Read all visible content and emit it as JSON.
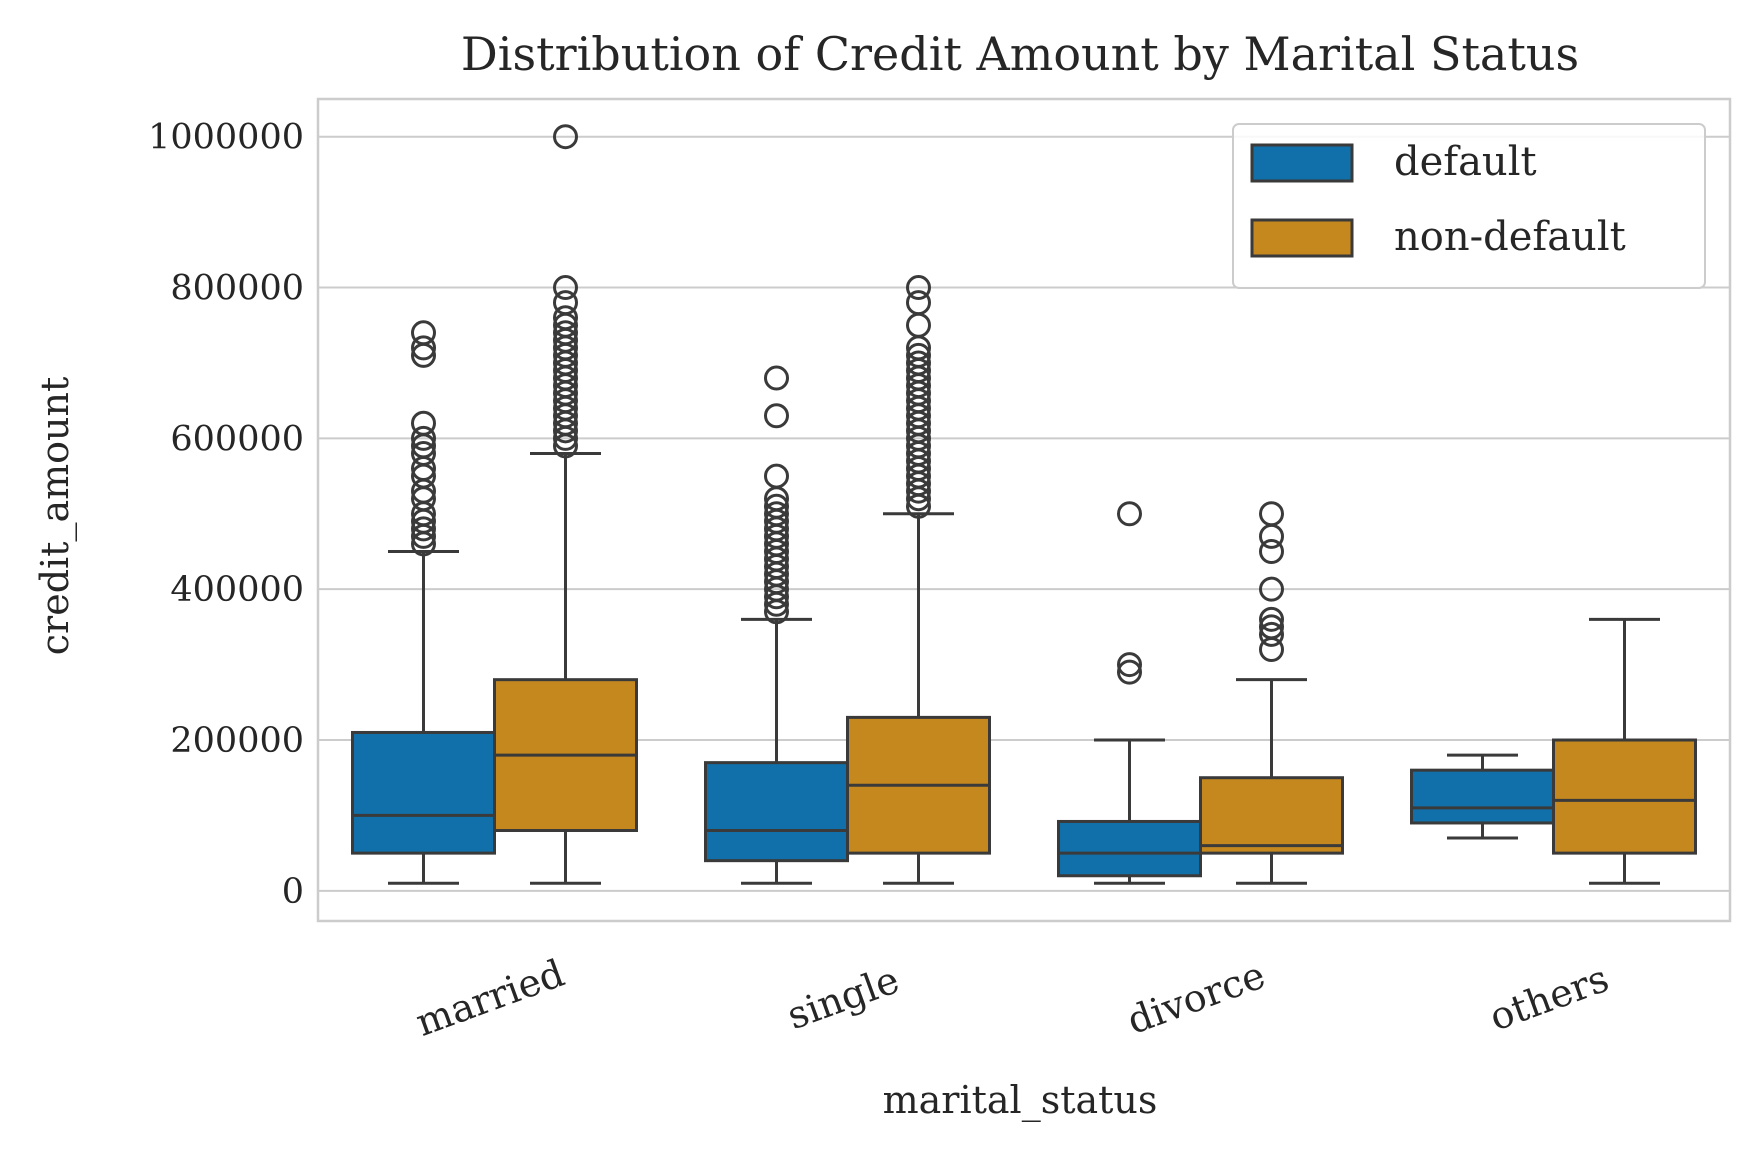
{
  "chart_data": {
    "type": "box",
    "title": "Distribution of Credit Amount by Marital Status",
    "xlabel": "marital_status",
    "ylabel": "credit_amount",
    "categories": [
      "married",
      "single",
      "divorce",
      "others"
    ],
    "ylim": [
      -40000,
      1050000
    ],
    "yticks": [
      0,
      200000,
      400000,
      600000,
      800000,
      1000000
    ],
    "ytick_labels": [
      "0",
      "200000",
      "400000",
      "600000",
      "800000",
      "1000000"
    ],
    "grid": true,
    "legend_position": "top-right",
    "series": [
      {
        "name": "default",
        "color": "#1170aa",
        "boxes": [
          {
            "whisker_low": 10000,
            "q1": 50000,
            "median": 100000,
            "q3": 210000,
            "whisker_high": 450000,
            "outliers": [
              460000,
              470000,
              480000,
              490000,
              500000,
              520000,
              530000,
              550000,
              560000,
              580000,
              590000,
              600000,
              620000,
              710000,
              720000,
              740000
            ]
          },
          {
            "whisker_low": 10000,
            "q1": 40000,
            "median": 80000,
            "q3": 170000,
            "whisker_high": 360000,
            "outliers": [
              370000,
              380000,
              390000,
              400000,
              410000,
              420000,
              430000,
              440000,
              450000,
              460000,
              470000,
              480000,
              490000,
              500000,
              510000,
              520000,
              550000,
              630000,
              680000
            ]
          },
          {
            "whisker_low": 10000,
            "q1": 20000,
            "median": 50000,
            "q3": 92000,
            "whisker_high": 200000,
            "outliers": [
              290000,
              300000,
              500000
            ]
          },
          {
            "whisker_low": 70000,
            "q1": 90000,
            "median": 110000,
            "q3": 160000,
            "whisker_high": 180000,
            "outliers": []
          }
        ]
      },
      {
        "name": "non-default",
        "color": "#c5881f",
        "boxes": [
          {
            "whisker_low": 10000,
            "q1": 80000,
            "median": 180000,
            "q3": 280000,
            "whisker_high": 580000,
            "outliers": [
              590000,
              600000,
              610000,
              620000,
              630000,
              640000,
              650000,
              660000,
              670000,
              680000,
              690000,
              700000,
              710000,
              720000,
              730000,
              740000,
              750000,
              760000,
              780000,
              800000,
              1000000
            ]
          },
          {
            "whisker_low": 10000,
            "q1": 50000,
            "median": 140000,
            "q3": 230000,
            "whisker_high": 500000,
            "outliers": [
              510000,
              520000,
              530000,
              540000,
              550000,
              560000,
              570000,
              580000,
              590000,
              600000,
              610000,
              620000,
              630000,
              640000,
              650000,
              660000,
              670000,
              680000,
              690000,
              700000,
              710000,
              720000,
              750000,
              780000,
              800000
            ]
          },
          {
            "whisker_low": 10000,
            "q1": 50000,
            "median": 60000,
            "q3": 150000,
            "whisker_high": 280000,
            "outliers": [
              320000,
              340000,
              350000,
              360000,
              400000,
              450000,
              470000,
              500000
            ]
          },
          {
            "whisker_low": 10000,
            "q1": 50000,
            "median": 120000,
            "q3": 200000,
            "whisker_high": 360000,
            "outliers": []
          }
        ]
      }
    ]
  }
}
